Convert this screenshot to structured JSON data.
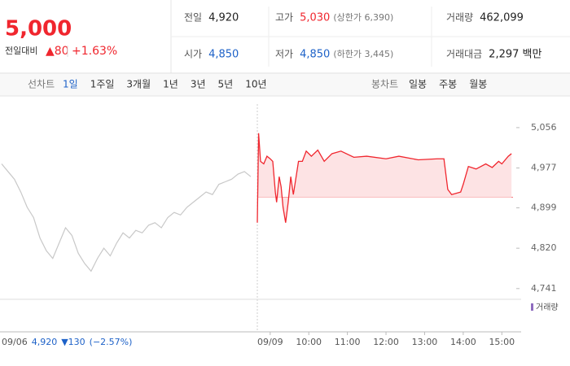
{
  "header": {
    "price": "5,000",
    "change_label": "전일대비",
    "change": "▲80",
    "change_rate": "+1.63%"
  },
  "stats": [
    {
      "label": "전일",
      "value": "4,920"
    },
    {
      "label": "고가",
      "value": "5,030",
      "note": "(상한가 6,390)"
    },
    {
      "label": "거래량",
      "value": "462,099"
    },
    {
      "label": "시가",
      "value": "4,850"
    },
    {
      "label": "저가",
      "value": "4,850",
      "note": "(하한가 3,445)"
    },
    {
      "label": "거래대금",
      "value": "2,297 백만"
    }
  ],
  "tabs": {
    "line_label": "선차트",
    "line": [
      "1일",
      "1주일",
      "3개월",
      "1년",
      "3년",
      "5년",
      "10년"
    ],
    "candle_label": "봉차트",
    "candle": [
      "일봉",
      "주봉",
      "월봉"
    ]
  },
  "chart_data": {
    "type": "line",
    "ylim": [
      4720,
      5102
    ],
    "yticks": [
      {
        "value": 5056,
        "label": "5,056"
      },
      {
        "value": 4977,
        "label": "4,977"
      },
      {
        "value": 4899,
        "label": "4,899"
      },
      {
        "value": 4820,
        "label": "4,820"
      },
      {
        "value": 4741,
        "label": "4,741"
      }
    ],
    "xlim": [
      -20,
      390
    ],
    "xticks": [
      {
        "value": 0,
        "label": "09/09"
      },
      {
        "value": 60,
        "label": "10:00"
      },
      {
        "value": 120,
        "label": "11:00"
      },
      {
        "value": 180,
        "label": "12:00"
      },
      {
        "value": 240,
        "label": "13:00"
      },
      {
        "value": 300,
        "label": "14:00"
      },
      {
        "value": 360,
        "label": "15:00"
      }
    ],
    "baseline": 4920,
    "series": [
      {
        "color": "#c8c8c8",
        "values": [
          4985,
          4970,
          4955,
          4930,
          4900,
          4880,
          4840,
          4815,
          4800,
          4830,
          4860,
          4845,
          4810,
          4790,
          4775,
          4800,
          4820,
          4805,
          4830,
          4850,
          4840,
          4855,
          4850,
          4865,
          4870,
          4860,
          4880,
          4890,
          4885,
          4900,
          4910,
          4920,
          4930,
          4925,
          4945,
          4950,
          4955,
          4965,
          4970,
          4960
        ]
      },
      {
        "color": "#f0262e",
        "x": [
          -20,
          -18,
          -15,
          -10,
          -5,
          0,
          4,
          8,
          10,
          14,
          17,
          20,
          24,
          28,
          32,
          36,
          44,
          50,
          56,
          64,
          74,
          84,
          96,
          110,
          130,
          150,
          180,
          200,
          230,
          260,
          270,
          276,
          282,
          296,
          300,
          308,
          320,
          335,
          345,
          355,
          360,
          370,
          375
        ],
        "values": [
          4870,
          5045,
          4990,
          4985,
          5000,
          4995,
          4990,
          4930,
          4910,
          4960,
          4940,
          4900,
          4870,
          4910,
          4960,
          4925,
          4990,
          4990,
          5010,
          5000,
          5012,
          4990,
          5005,
          5010,
          4998,
          5000,
          4995,
          5000,
          4993,
          4995,
          4995,
          4935,
          4925,
          4930,
          4945,
          4980,
          4975,
          4985,
          4978,
          4990,
          4985,
          5000,
          5005
        ]
      }
    ],
    "volume_label": "거래량"
  },
  "footer": {
    "date": "09/06",
    "price": "4,920",
    "change": "▼130",
    "change_rate": "(−2.57%)"
  }
}
